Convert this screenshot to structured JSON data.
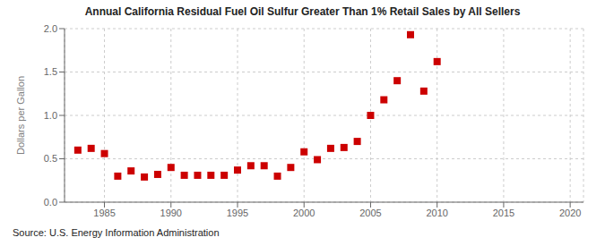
{
  "chart_data": {
    "type": "scatter",
    "title": "Annual California Residual Fuel Oil Sulfur Greater Than 1% Retail Sales by All Sellers",
    "ylabel": "Dollars per Gallon",
    "annotations": [
      "Source: U.S. Energy Information Administration"
    ],
    "x": [
      1983,
      1984,
      1985,
      1986,
      1987,
      1988,
      1989,
      1990,
      1991,
      1992,
      1993,
      1994,
      1995,
      1996,
      1997,
      1998,
      1999,
      2000,
      2001,
      2002,
      2003,
      2004,
      2005,
      2006,
      2007,
      2008,
      2009,
      2010
    ],
    "values": [
      0.6,
      0.62,
      0.56,
      0.3,
      0.36,
      0.29,
      0.32,
      0.4,
      0.31,
      0.31,
      0.31,
      0.31,
      0.37,
      0.42,
      0.42,
      0.3,
      0.4,
      0.58,
      0.49,
      0.62,
      0.63,
      0.7,
      1.0,
      1.18,
      1.4,
      1.93,
      1.28,
      1.62
    ],
    "color": "#cc0000",
    "marker": "square",
    "xlim": [
      1982,
      2021
    ],
    "ylim": [
      0.0,
      2.0
    ],
    "xticks": [
      1985,
      1990,
      1995,
      2000,
      2005,
      2010,
      2015,
      2020
    ],
    "yticks": [
      {
        "value": 0,
        "label": "0.0"
      },
      0.5,
      {
        "value": 1,
        "label": "1.0"
      },
      1.5,
      {
        "value": 2,
        "label": "2.0"
      }
    ],
    "grid": true
  }
}
